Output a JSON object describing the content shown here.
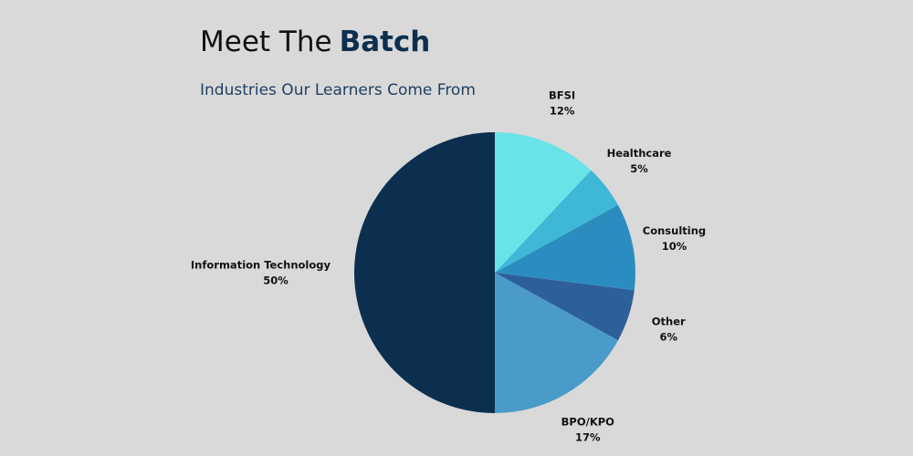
{
  "chart_data": {
    "type": "pie",
    "title": "Meet The",
    "title_highlight": "Batch",
    "subtitle": "Industries Our Learners Come From",
    "categories": [
      "BFSI",
      "Healthcare",
      "Consulting",
      "Other",
      "BPO/KPO",
      "Information Technology"
    ],
    "values": [
      12,
      5,
      10,
      6,
      17,
      50
    ],
    "value_labels": [
      "12%",
      "5%",
      "10%",
      "6%",
      "17%",
      "50%"
    ],
    "colors": [
      "#6ae3e8",
      "#3fb8d8",
      "#2b8dbf",
      "#2d5f9a",
      "#4a9bc9",
      "#0d2f4f"
    ]
  }
}
